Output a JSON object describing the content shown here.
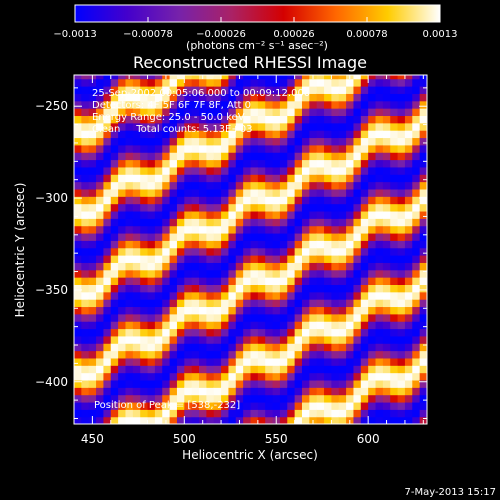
{
  "chart_data": {
    "type": "heatmap",
    "title": "Reconstructed RHESSI Image",
    "xlabel": "Heliocentric X (arcsec)",
    "ylabel": "Heliocentric Y (arcsec)",
    "xlim": [
      440,
      632
    ],
    "ylim": [
      -423,
      -233
    ],
    "xticks": [
      450,
      500,
      550,
      600
    ],
    "xtick_labels": [
      "450",
      "500",
      "550",
      "600"
    ],
    "yticks": [
      -250,
      -300,
      -350,
      -400
    ],
    "ytick_labels": [
      "−250",
      "−300",
      "−350",
      "−400"
    ],
    "colorbar": {
      "min": -0.0013,
      "max": 0.0013,
      "ticks": [
        -0.0013,
        -0.00078,
        -0.00026,
        0.00026,
        0.00078,
        0.0013
      ],
      "tick_labels": [
        "−0.0013",
        "−0.00078",
        "−0.00026",
        "0.00026",
        "0.00078",
        "0.0013"
      ],
      "unit_label": "(photons cm⁻² s⁻¹ asec⁻²)",
      "colors": [
        "#0000ff",
        "#4400cc",
        "#7722aa",
        "#aa2266",
        "#d40000",
        "#ff6600",
        "#ffcc00",
        "#ffffff"
      ]
    },
    "fringe_pattern": {
      "description_values": {
        "grid_step_arcsec": 4,
        "fringe_slope": 0.5,
        "fringe_period_arcsec": 44,
        "wiggle_amplitude_arcsec": 5,
        "wiggle_period_arcsec": 34,
        "peak_value": 0.0013
      }
    },
    "annotations": [
      "25-Sep-2002 00:05:06.000 to 00:09:12.000",
      "Detectors: 4F 5F 6F 7F 8F, Att 0",
      "Energy Range: 25.0 - 50.0 keV",
      "Clean     Total counts: 5.13E+03"
    ],
    "peak_label": "Position of Peak = [538,-232]",
    "footer_date": "7-May-2013 15:17"
  }
}
